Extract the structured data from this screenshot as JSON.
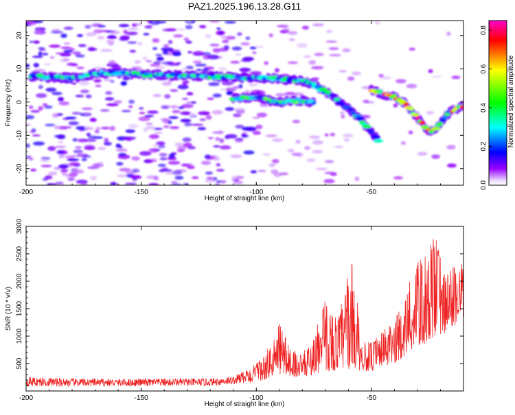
{
  "figure": {
    "title": "PAZ1.2025.196.13.28.G11"
  },
  "chart_data": [
    {
      "type": "heatmap",
      "xlabel": "Height of straight line (km)",
      "ylabel": "Frequency (Hz)",
      "xlim": [
        -200,
        -10
      ],
      "ylim": [
        -25,
        24.5
      ],
      "xticks": [
        -200,
        -150,
        -100,
        -50
      ],
      "yticks": [
        -20,
        -10,
        0,
        10,
        20
      ],
      "colorbar": {
        "label": "Normalized spectral amplitude",
        "range": [
          0,
          0.85
        ],
        "ticks": [
          0.0,
          0.2,
          0.4,
          0.6,
          0.8
        ],
        "colormap": "rainbow",
        "colors": [
          "#ffffff",
          "#9900ff",
          "#0000ff",
          "#00ffff",
          "#00ff00",
          "#ffff00",
          "#ff0000",
          "#ff00cc"
        ]
      },
      "ridge": [
        [
          -198,
          7.8
        ],
        [
          -190,
          7.5
        ],
        [
          -180,
          7.2
        ],
        [
          -170,
          8.5
        ],
        [
          -160,
          8.8
        ],
        [
          -150,
          8.3
        ],
        [
          -140,
          8.1
        ],
        [
          -130,
          8.0
        ],
        [
          -120,
          7.7
        ],
        [
          -110,
          7.5
        ],
        [
          -100,
          7.3
        ],
        [
          -90,
          7.0
        ],
        [
          -80,
          6.3
        ],
        [
          -75,
          5.2
        ],
        [
          -70,
          3.2
        ],
        [
          -65,
          0.6
        ],
        [
          -60,
          -2.0
        ],
        [
          -55,
          -5.2
        ],
        [
          -50,
          -9.0
        ],
        [
          -47,
          -11.5
        ]
      ],
      "secondary_ridge": [
        [
          -110,
          1.0
        ],
        [
          -100,
          1.5
        ],
        [
          -95,
          0.5
        ],
        [
          -90,
          0.0
        ],
        [
          -85,
          0.3
        ],
        [
          -80,
          0.5
        ],
        [
          -75,
          -0.3
        ]
      ],
      "tertiary_ridge": [
        [
          -50,
          3.8
        ],
        [
          -45,
          2.3
        ],
        [
          -40,
          1.5
        ],
        [
          -35,
          -0.5
        ],
        [
          -32,
          -3.0
        ],
        [
          -28,
          -6.5
        ],
        [
          -25,
          -8.8
        ],
        [
          -22,
          -7.8
        ],
        [
          -18,
          -4.5
        ],
        [
          -15,
          -2.5
        ],
        [
          -10,
          -1.2
        ]
      ]
    },
    {
      "type": "line",
      "xlabel": "Height of straight line (km)",
      "ylabel": "SNR (10 * v/v)",
      "xlim": [
        -200,
        -10
      ],
      "ylim": [
        0,
        3000
      ],
      "xticks": [
        -200,
        -150,
        -100,
        -50
      ],
      "yticks": [
        500,
        1000,
        1500,
        2000,
        2500,
        3000
      ],
      "series": [
        {
          "color": "#ee2222",
          "envelope": [
            [
              -200,
              260
            ],
            [
              -180,
              230
            ],
            [
              -160,
              220
            ],
            [
              -140,
              230
            ],
            [
              -120,
              230
            ],
            [
              -110,
              270
            ],
            [
              -100,
              500
            ],
            [
              -96,
              700
            ],
            [
              -92,
              1000
            ],
            [
              -90,
              1300
            ],
            [
              -88,
              1100
            ],
            [
              -85,
              800
            ],
            [
              -80,
              700
            ],
            [
              -76,
              900
            ],
            [
              -73,
              1300
            ],
            [
              -70,
              1700
            ],
            [
              -68,
              1600
            ],
            [
              -65,
              1350
            ],
            [
              -62,
              1800
            ],
            [
              -60,
              2300
            ],
            [
              -58,
              2400
            ],
            [
              -56,
              1700
            ],
            [
              -54,
              900
            ],
            [
              -50,
              900
            ],
            [
              -45,
              1100
            ],
            [
              -40,
              1300
            ],
            [
              -36,
              1700
            ],
            [
              -32,
              2200
            ],
            [
              -28,
              2500
            ],
            [
              -25,
              2600
            ],
            [
              -22,
              2950
            ],
            [
              -20,
              2500
            ],
            [
              -18,
              2100
            ],
            [
              -15,
              2300
            ],
            [
              -12,
              2550
            ],
            [
              -10,
              2200
            ]
          ],
          "floor": [
            [
              -200,
              80
            ],
            [
              -120,
              90
            ],
            [
              -100,
              150
            ],
            [
              -90,
              300
            ],
            [
              -80,
              250
            ],
            [
              -70,
              350
            ],
            [
              -60,
              400
            ],
            [
              -50,
              350
            ],
            [
              -40,
              500
            ],
            [
              -30,
              800
            ],
            [
              -20,
              1000
            ],
            [
              -10,
              1300
            ]
          ]
        }
      ]
    }
  ]
}
